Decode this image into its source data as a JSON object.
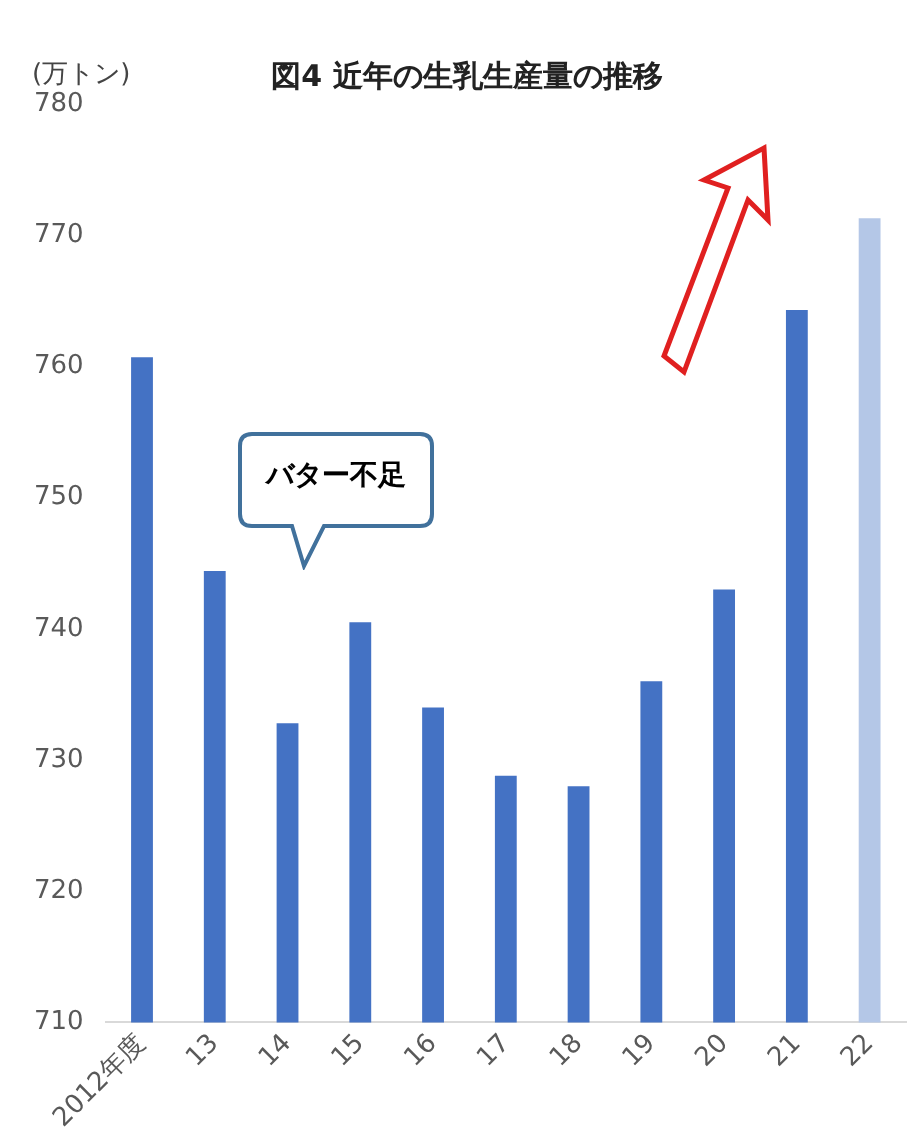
{
  "chart_data": {
    "type": "bar",
    "title": "図4 近年の生乳生産量の推移",
    "ylabel": "(万トン)",
    "categories": [
      "2012年度",
      "13",
      "14",
      "15",
      "16",
      "17",
      "18",
      "19",
      "20",
      "21",
      "22"
    ],
    "series": [
      {
        "values": [
          760.7,
          744.4,
          732.8,
          740.5,
          734,
          728.8,
          728,
          736,
          743,
          764.3,
          771.3
        ],
        "colors": [
          "#4472c4",
          "#4472c4",
          "#4472c4",
          "#4472c4",
          "#4472c4",
          "#4472c4",
          "#4472c4",
          "#4472c4",
          "#4472c4",
          "#4472c4",
          "#b4c7e7"
        ]
      }
    ],
    "ylim": [
      710,
      780
    ],
    "yticks": [
      710,
      720,
      730,
      740,
      750,
      760,
      770,
      780
    ],
    "grid": false,
    "legend": false,
    "annotations": [
      "バター不足"
    ]
  }
}
